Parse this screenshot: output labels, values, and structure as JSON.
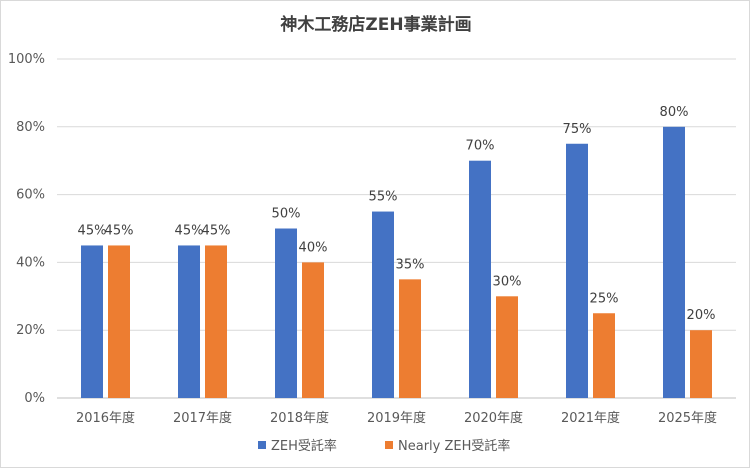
{
  "chart_data": {
    "type": "bar",
    "title": "神木工務店ZEH事業計画",
    "xlabel": "",
    "ylabel": "",
    "ylim": [
      0,
      100
    ],
    "yticks": [
      0,
      20,
      40,
      60,
      80,
      100
    ],
    "ytick_suffix": "%",
    "categories": [
      "2016年度",
      "2017年度",
      "2018年度",
      "2019年度",
      "2020年度",
      "2021年度",
      "2025年度"
    ],
    "series": [
      {
        "name": "ZEH受託率",
        "color": "#4472c4",
        "values": [
          45,
          45,
          50,
          55,
          70,
          75,
          80
        ]
      },
      {
        "name": "Nearly ZEH受託率",
        "color": "#ed7d31",
        "values": [
          45,
          45,
          40,
          35,
          30,
          25,
          20
        ]
      }
    ],
    "grid": true,
    "legend_position": "bottom"
  }
}
